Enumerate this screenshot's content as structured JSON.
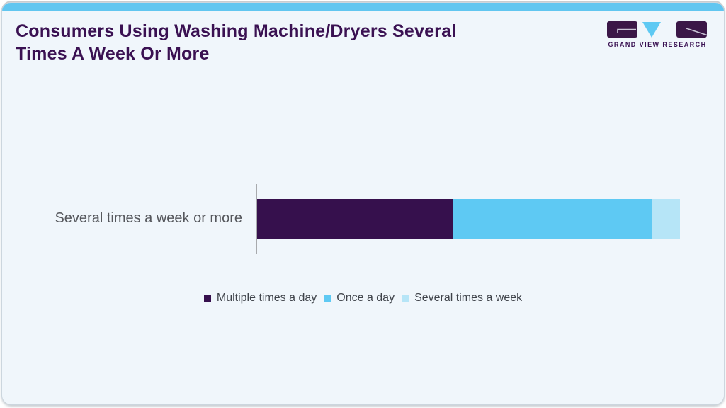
{
  "header": {
    "title": "Consumers Using Washing Machine/Dryers Several Times A Week Or More",
    "logo": {
      "name": "Grand View Research",
      "text": "GRAND VIEW RESEARCH"
    }
  },
  "colors": {
    "accent_bar": "#61c6f0",
    "card_bg": "#f0f6fb",
    "title_text": "#3a1152",
    "category_label_text": "#55575c",
    "legend_text": "#3f434a",
    "axis_line": "#a8aaad"
  },
  "chart_data": {
    "type": "bar",
    "orientation": "horizontal",
    "stacked": true,
    "title": "Consumers Using Washing Machine/Dryers Several Times A Week Or More",
    "categories": [
      "Several times a week or more"
    ],
    "series": [
      {
        "name": "Multiple times a day",
        "values": [
          46.2
        ],
        "color": "#36104d"
      },
      {
        "name": "Once a day",
        "values": [
          47.3
        ],
        "color": "#5ec9f3"
      },
      {
        "name": "Several times a week",
        "values": [
          6.5
        ],
        "color": "#b6e5f7"
      }
    ],
    "values_note": "segment sizes estimated as percent of total bar length; no numeric axis shown in image",
    "legend_position": "bottom",
    "grid": false,
    "xlabel": "",
    "ylabel": ""
  }
}
